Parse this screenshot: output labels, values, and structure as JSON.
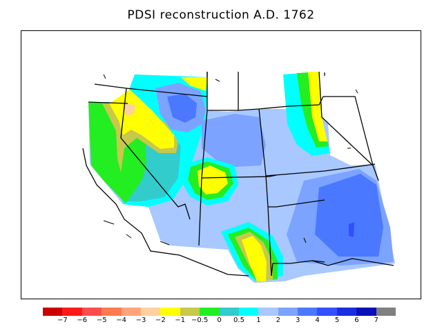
{
  "title": "PDSI reconstruction A.D. 1762",
  "legend": {
    "colors": [
      "#cc0000",
      "#ff1a1a",
      "#ff4d4d",
      "#ff7a4d",
      "#ffa47a",
      "#ffd0a0",
      "#ffff00",
      "#c8c84a",
      "#22ee22",
      "#33cccc",
      "#00ffff",
      "#a8c8ff",
      "#7ba3ff",
      "#4a78ff",
      "#3250ff",
      "#1a2ee0",
      "#0a10b8",
      "#808080"
    ],
    "labels": [
      "−7",
      "−6",
      "−5",
      "−4",
      "−3",
      "−2",
      "−1",
      "−0.5",
      "0",
      "0.5",
      "1",
      "2",
      "3",
      "4",
      "5",
      "6",
      "7"
    ]
  }
}
